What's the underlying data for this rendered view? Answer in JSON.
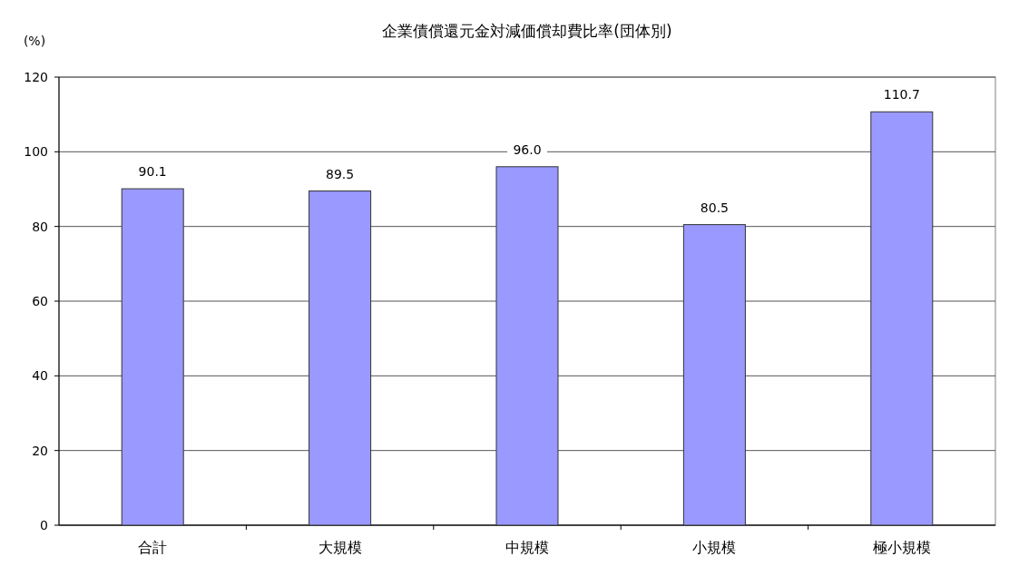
{
  "chart_data": {
    "type": "bar",
    "title": "企業債償還元金対減価償却費比率(団体別)",
    "ylabel": "(%)",
    "categories": [
      "合計",
      "大規模",
      "中規模",
      "小規模",
      "極小規模"
    ],
    "values": [
      90.1,
      89.5,
      96.0,
      80.5,
      110.7
    ],
    "value_labels": [
      "90.1",
      "89.5",
      "96.0",
      "80.5",
      "110.7"
    ],
    "color": "#9999ff",
    "ylim": [
      0,
      120
    ],
    "yticks": [
      0,
      20,
      40,
      60,
      80,
      100,
      120
    ],
    "grid": "y"
  }
}
